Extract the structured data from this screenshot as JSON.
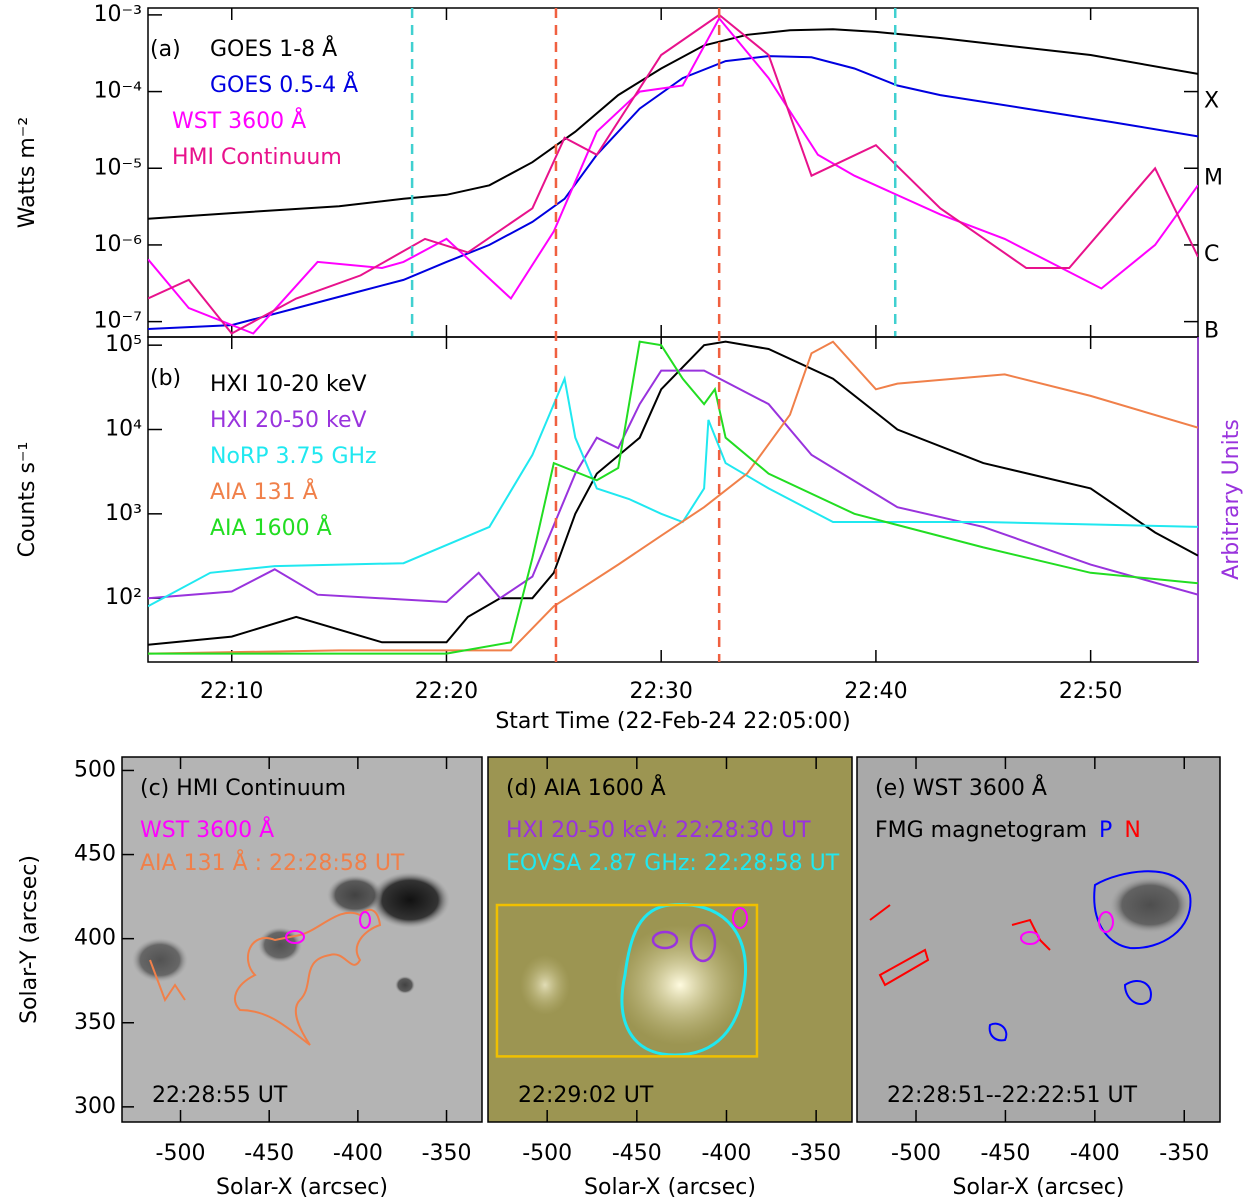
{
  "chart_data": [
    {
      "type": "line",
      "panel_label": "(a)",
      "ylabel": "Watts m⁻²",
      "log": true,
      "xlim": [
        1.1,
        50
      ],
      "ylim": [
        6.3e-08,
        0.00123
      ],
      "yticks": [
        {
          "value": 1e-07,
          "label": "10⁻⁷"
        },
        {
          "value": 1e-06,
          "label": "10⁻⁶"
        },
        {
          "value": 1e-05,
          "label": "10⁻⁵"
        },
        {
          "value": 0.0001,
          "label": "10⁻⁴"
        },
        {
          "value": 0.001,
          "label": "10⁻³"
        }
      ],
      "goes_classes": [
        {
          "value": 0.0001,
          "label": "X"
        },
        {
          "value": 1e-05,
          "label": "M"
        },
        {
          "value": 1e-06,
          "label": "C"
        },
        {
          "value": 1e-07,
          "label": "B"
        }
      ],
      "vlines": [
        {
          "x": 13.4,
          "color": "#40d0d0"
        },
        {
          "x": 35.9,
          "color": "#40d0d0"
        }
      ],
      "series": [
        {
          "name": "GOES 1-8 Å",
          "color": "#000000",
          "x": [
            1.1,
            5,
            10,
            13,
            15,
            17,
            19,
            21,
            23,
            25,
            27,
            29,
            31,
            33,
            35,
            38,
            41,
            45,
            50
          ],
          "values": [
            2.2e-06,
            2.6e-06,
            3.2e-06,
            4e-06,
            4.5e-06,
            6e-06,
            1.2e-05,
            3e-05,
            9e-05,
            0.0002,
            0.0004,
            0.00055,
            0.00063,
            0.00065,
            0.0006,
            0.0005,
            0.0004,
            0.0003,
            0.00017
          ]
        },
        {
          "name": "GOES 0.5-4 Å",
          "color": "#0000e0",
          "x": [
            1.1,
            5,
            8,
            11,
            13,
            15,
            17,
            19,
            20.5,
            22,
            24,
            26,
            28,
            30,
            32,
            34,
            36,
            38,
            42,
            46,
            50
          ],
          "values": [
            8e-08,
            9e-08,
            1.5e-07,
            2.5e-07,
            3.5e-07,
            6e-07,
            1e-06,
            2e-06,
            4e-06,
            1.5e-05,
            6e-05,
            0.00015,
            0.00025,
            0.00029,
            0.00028,
            0.0002,
            0.00012,
            9e-05,
            6e-05,
            4e-05,
            2.6e-05
          ]
        },
        {
          "name": "WST 3600 Å",
          "color": "#ff00ff",
          "x": [
            1.1,
            3,
            6,
            9,
            12,
            13,
            15,
            18,
            20,
            22,
            24,
            26,
            27.7,
            30,
            32.3,
            34,
            38,
            41,
            45.5,
            48,
            50
          ],
          "values": [
            6.5e-07,
            1.5e-07,
            7e-08,
            6e-07,
            5e-07,
            6e-07,
            1.2e-06,
            2e-07,
            1.5e-06,
            3e-05,
            0.0001,
            0.00012,
            0.0009,
            0.00015,
            1.5e-05,
            8e-06,
            2.5e-06,
            1.2e-06,
            2.7e-07,
            1e-06,
            6e-06
          ]
        },
        {
          "name": "HMI Continuum",
          "color": "#e8128c",
          "x": [
            1.1,
            3,
            5,
            8,
            11,
            14,
            16,
            19,
            20.5,
            22,
            25,
            27.7,
            30,
            32,
            35,
            38,
            42,
            44,
            48,
            50
          ],
          "values": [
            2e-07,
            3.5e-07,
            7e-08,
            2e-07,
            4e-07,
            1.2e-06,
            8e-07,
            3e-06,
            2.5e-05,
            1.5e-05,
            0.0003,
            0.001,
            0.0003,
            8e-06,
            2e-05,
            3e-06,
            5e-07,
            5e-07,
            1e-05,
            7e-07
          ]
        }
      ]
    },
    {
      "type": "line",
      "panel_label": "(b)",
      "ylabel": "Counts s⁻¹",
      "y2label": "Arbitrary Units",
      "log": true,
      "xlim": [
        1.1,
        50
      ],
      "ylim": [
        17.5,
        125000
      ],
      "xlabel": "Start Time (22-Feb-24 22:05:00)",
      "xticks": [
        {
          "value": 5,
          "label": "22:10"
        },
        {
          "value": 15,
          "label": "22:20"
        },
        {
          "value": 25,
          "label": "22:30"
        },
        {
          "value": 35,
          "label": "22:40"
        },
        {
          "value": 45,
          "label": "22:50"
        }
      ],
      "yticks": [
        {
          "value": 100,
          "label": "10²"
        },
        {
          "value": 1000,
          "label": "10³"
        },
        {
          "value": 10000,
          "label": "10⁴"
        },
        {
          "value": 100000,
          "label": "10⁵"
        }
      ],
      "vlines": [
        {
          "x": 20.1,
          "color": "#f06040"
        },
        {
          "x": 27.7,
          "color": "#f06040"
        }
      ],
      "series": [
        {
          "name": "HXI 10-20 keV",
          "color": "#000000",
          "x": [
            1.1,
            5,
            8,
            12,
            15,
            16,
            17.5,
            19,
            20,
            21,
            22,
            24,
            25,
            27,
            28,
            30,
            33,
            36,
            40,
            45,
            48,
            50
          ],
          "values": [
            28,
            35,
            60,
            30,
            30,
            60,
            100,
            100,
            200,
            1000,
            3000,
            8000,
            30000,
            100000,
            110000,
            90000,
            40000,
            10000,
            4000,
            2000,
            600,
            320
          ]
        },
        {
          "name": "HXI 20-50 keV",
          "color": "#9933dd",
          "x": [
            1.1,
            5,
            7,
            9,
            15,
            16.5,
            17.5,
            19,
            21,
            22,
            23,
            24,
            25,
            27,
            30,
            32,
            36,
            40,
            45,
            50
          ],
          "values": [
            100,
            120,
            220,
            110,
            90,
            200,
            100,
            180,
            3000,
            8000,
            6000,
            20000,
            50000,
            50000,
            20000,
            5000,
            1200,
            700,
            250,
            110
          ]
        },
        {
          "name": "NoRP 3.75 GHz",
          "color": "#20e8f0",
          "x": [
            1.1,
            4,
            7,
            13,
            17,
            19,
            20.5,
            21,
            22,
            23.5,
            25,
            26,
            27,
            27.2,
            28,
            30,
            33,
            40,
            50
          ],
          "values": [
            80,
            200,
            240,
            260,
            700,
            5000,
            40000,
            8000,
            2000,
            1500,
            1000,
            800,
            2000,
            13000,
            4000,
            2000,
            800,
            800,
            700
          ]
        },
        {
          "name": "AIA 131 Å",
          "color": "#f0804a",
          "x": [
            1.1,
            10,
            18,
            20,
            23,
            25,
            27,
            29,
            31,
            32,
            33,
            35,
            36,
            41,
            45,
            50
          ],
          "values": [
            22,
            24,
            24,
            80,
            250,
            550,
            1200,
            3000,
            15000,
            80000,
            110000,
            30000,
            35000,
            45000,
            25000,
            10500
          ]
        },
        {
          "name": "AIA 1600 Å",
          "color": "#22dd22",
          "x": [
            1.1,
            15,
            18,
            19,
            20,
            22,
            23,
            24,
            25,
            26,
            27,
            27.5,
            28,
            30,
            34,
            40,
            45,
            50
          ],
          "values": [
            22,
            22,
            30,
            300,
            4000,
            2500,
            3500,
            110000,
            100000,
            40000,
            20000,
            30000,
            8000,
            3000,
            1000,
            400,
            200,
            150
          ]
        }
      ]
    },
    {
      "type": "image",
      "title": "(c) HMI Continuum",
      "background": "#b4b4b4",
      "annotations": [
        {
          "text": "WST 3600 Å",
          "color": "#ff00ff"
        },
        {
          "text": "AIA 131 Å : 22:28:58 UT",
          "color": "#f0804a"
        }
      ],
      "time": "22:28:55 UT",
      "xlabel": "Solar-X (arcsec)",
      "ylabel": "Solar-Y (arcsec)",
      "xlim": [
        -533,
        -330
      ],
      "ylim": [
        291,
        508
      ],
      "xticks": [
        -500,
        -450,
        -400,
        -350
      ],
      "yticks": [
        300,
        350,
        400,
        450,
        500
      ]
    },
    {
      "type": "image",
      "title": "(d) AIA 1600 Å",
      "background": "#9c9552",
      "annotations": [
        {
          "text": "HXI 20-50 keV: 22:28:30 UT",
          "color": "#9933dd"
        },
        {
          "text": "EOVSA 2.87 GHz: 22:28:58 UT",
          "color": "#20e8f0"
        }
      ],
      "box": {
        "x": [
          -528,
          -383
        ],
        "y": [
          330,
          420
        ],
        "color": "#f0c000"
      },
      "time": "22:29:02 UT",
      "xlabel": "Solar-X (arcsec)",
      "xlim": [
        -533,
        -330
      ],
      "ylim": [
        291,
        508
      ],
      "xticks": [
        -500,
        -450,
        -400,
        -350
      ]
    },
    {
      "type": "image",
      "title": "(e) WST 3600 Å",
      "background": "#a9a9a9",
      "annotations": [
        {
          "text": "FMG magnetogram",
          "color": "#000000"
        },
        {
          "text": "P",
          "color": "#0000ff",
          "inline": true
        },
        {
          "text": "N",
          "color": "#ff0000",
          "inline": true
        }
      ],
      "time": "22:28:51--22:22:51 UT",
      "xlabel": "Solar-X (arcsec)",
      "xlim": [
        -533,
        -330
      ],
      "ylim": [
        291,
        508
      ],
      "xticks": [
        -500,
        -450,
        -400,
        -350
      ]
    }
  ]
}
